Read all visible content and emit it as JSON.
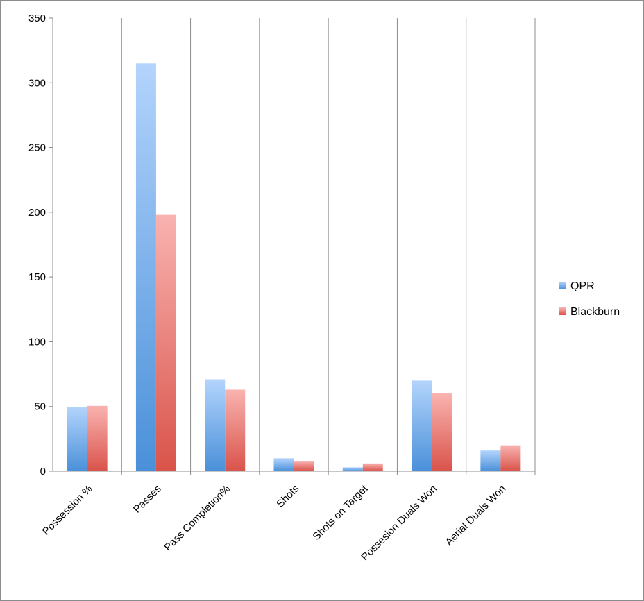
{
  "chart_data": {
    "type": "bar",
    "title": "",
    "xlabel": "",
    "ylabel": "",
    "categories": [
      "Possession %",
      "Passes",
      "Pass Completion%",
      "Shots",
      "Shots on Target",
      "Possesion Duals Won",
      "Aerial Duals Won"
    ],
    "series": [
      {
        "name": "QPR",
        "values": [
          49.5,
          315,
          71,
          10,
          3,
          70,
          16
        ],
        "color_top": "#b3d4fc",
        "color_bottom": "#4a90d9"
      },
      {
        "name": "Blackburn",
        "values": [
          50.5,
          198,
          63,
          8,
          6,
          60,
          20
        ],
        "color_top": "#f9b3b0",
        "color_bottom": "#d9534a"
      }
    ],
    "ylim": [
      0,
      350
    ],
    "yticks": [
      0,
      50,
      100,
      150,
      200,
      250,
      300,
      350
    ],
    "grid": "vertical separators between categories",
    "legend_position": "right"
  }
}
